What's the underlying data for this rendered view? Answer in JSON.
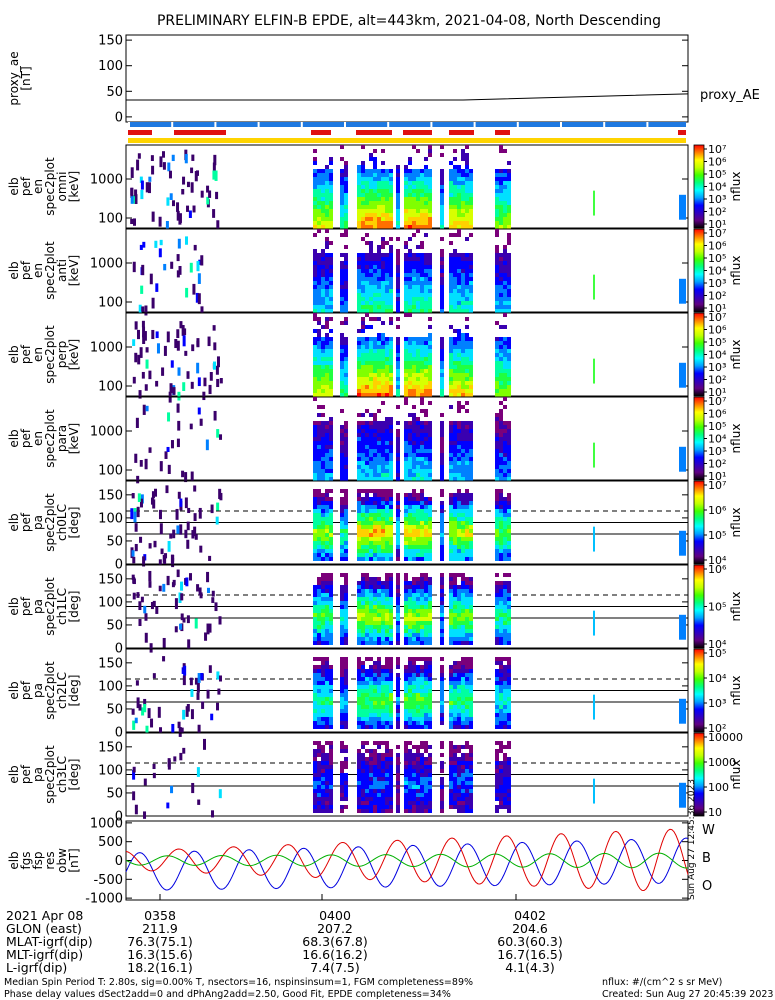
{
  "chart_data": {
    "type": "heatmap",
    "title": "PRELIMINARY ELFIN-B EPDE, alt=443km, 2021-04-08, North Descending",
    "panels": [
      {
        "id": "proxy_ae",
        "type": "line",
        "ylabel": [
          "proxy_ae",
          "[nT]"
        ],
        "yticks": [
          "150",
          "100",
          "50",
          "0"
        ],
        "ylim": [
          -10,
          160
        ],
        "legend": "proxy_AE",
        "line": {
          "x": [
            0.0,
            0.6,
            1.0
          ],
          "y": [
            33,
            33,
            45
          ]
        }
      },
      {
        "id": "en_omni",
        "type": "heatmap",
        "ylabel": [
          "elb",
          "pef",
          "en",
          "spec2plot",
          "omni",
          "[keV]"
        ],
        "yticks": [
          "1000",
          "100"
        ],
        "colorbar": {
          "label": "nflux",
          "ticks": [
            "10⁷",
            "10⁶",
            "10⁵",
            "10⁴",
            "10³",
            "10²",
            "10¹"
          ]
        }
      },
      {
        "id": "en_anti",
        "type": "heatmap",
        "ylabel": [
          "elb",
          "pef",
          "en",
          "spec2plot",
          "anti",
          "[keV]"
        ],
        "yticks": [
          "1000",
          "100"
        ],
        "colorbar": {
          "label": "nflux",
          "ticks": [
            "10⁷",
            "10⁶",
            "10⁵",
            "10⁴",
            "10³",
            "10²",
            "10¹"
          ]
        }
      },
      {
        "id": "en_perp",
        "type": "heatmap",
        "ylabel": [
          "elb",
          "pef",
          "en",
          "spec2plot",
          "perp",
          "[keV]"
        ],
        "yticks": [
          "1000",
          "100"
        ],
        "colorbar": {
          "label": "nflux",
          "ticks": [
            "10⁷",
            "10⁶",
            "10⁵",
            "10⁴",
            "10³",
            "10²",
            "10¹"
          ]
        }
      },
      {
        "id": "en_para",
        "type": "heatmap",
        "ylabel": [
          "elb",
          "pef",
          "en",
          "spec2plot",
          "para",
          "[keV]"
        ],
        "yticks": [
          "1000",
          "100"
        ],
        "colorbar": {
          "label": "nflux",
          "ticks": [
            "10⁷",
            "10⁶",
            "10⁵",
            "10⁴",
            "10³",
            "10²",
            "10¹"
          ]
        }
      },
      {
        "id": "pa_ch0",
        "type": "heatmap",
        "ylabel": [
          "elb",
          "pef",
          "pa",
          "spec2plot",
          "ch0LC",
          "[deg]"
        ],
        "yticks": [
          "150",
          "100",
          "50",
          "0"
        ],
        "colorbar": {
          "label": "nflux",
          "ticks": [
            "10⁷",
            "10⁶",
            "10⁵",
            "10⁴"
          ]
        }
      },
      {
        "id": "pa_ch1",
        "type": "heatmap",
        "ylabel": [
          "elb",
          "pef",
          "pa",
          "spec2plot",
          "ch1LC",
          "[deg]"
        ],
        "yticks": [
          "150",
          "100",
          "50",
          "0"
        ],
        "colorbar": {
          "label": "nflux",
          "ticks": [
            "10⁶",
            "10⁵",
            "10⁴"
          ]
        }
      },
      {
        "id": "pa_ch2",
        "type": "heatmap",
        "ylabel": [
          "elb",
          "pef",
          "pa",
          "spec2plot",
          "ch2LC",
          "[deg]"
        ],
        "yticks": [
          "150",
          "100",
          "50",
          "0"
        ],
        "colorbar": {
          "label": "nflux",
          "ticks": [
            "10⁵",
            "10⁴",
            "10³",
            "10²"
          ]
        }
      },
      {
        "id": "pa_ch3",
        "type": "heatmap",
        "ylabel": [
          "elb",
          "pef",
          "pa",
          "spec2plot",
          "ch3LC",
          "[deg]"
        ],
        "yticks": [
          "150",
          "100",
          "50",
          "0"
        ],
        "colorbar": {
          "label": "nflux",
          "ticks": [
            "10000",
            "1000",
            "100",
            "10"
          ]
        }
      },
      {
        "id": "bfield",
        "type": "line",
        "ylabel": [
          "elb",
          "fgs",
          "fsp",
          "res",
          "obw",
          "[nT]"
        ],
        "yticks": [
          "1000",
          "500",
          "0",
          "-500",
          "-1000"
        ],
        "ylim": [
          -1050,
          1050
        ],
        "legend": [
          "W",
          "B",
          "O"
        ],
        "colors": [
          "#e00000",
          "#00b000",
          "#0000e0"
        ]
      }
    ],
    "xticks": [
      "0358",
      "0400",
      "0402"
    ],
    "orbit_table": {
      "rows": [
        {
          "label": "2021 Apr 08",
          "values": [
            "0358",
            "0400",
            "0402"
          ]
        },
        {
          "label": "GLON (east)",
          "values": [
            "211.9",
            "207.2",
            "204.6"
          ]
        },
        {
          "label": "MLAT-igrf(dip)",
          "values": [
            "76.3(75.1)",
            "68.3(67.8)",
            "60.3(60.3)"
          ]
        },
        {
          "label": "MLT-igrf(dip)",
          "values": [
            "16.3(15.6)",
            "16.6(16.2)",
            "16.7(16.5)"
          ]
        },
        {
          "label": "L-igrf(dip)",
          "values": [
            "18.2(16.1)",
            "7.4(7.5)",
            "4.1(4.3)"
          ]
        }
      ]
    },
    "footer": {
      "line1": "Median Spin Period T: 2.80s, sig=0.00% T, nsectors=16, nspinsinsum=1, FGM completeness=89%",
      "line2": "Phase delay values dSect2add=0 and dPhAng2add=2.50, Good Fit, EPDE completeness=34%",
      "units": "nflux: #/(cm^2 s sr MeV)",
      "created": "Created: Sun Aug 27 20:45:39 2023"
    },
    "side_stamp": "Sun Aug 27 12:45:36 2023"
  }
}
